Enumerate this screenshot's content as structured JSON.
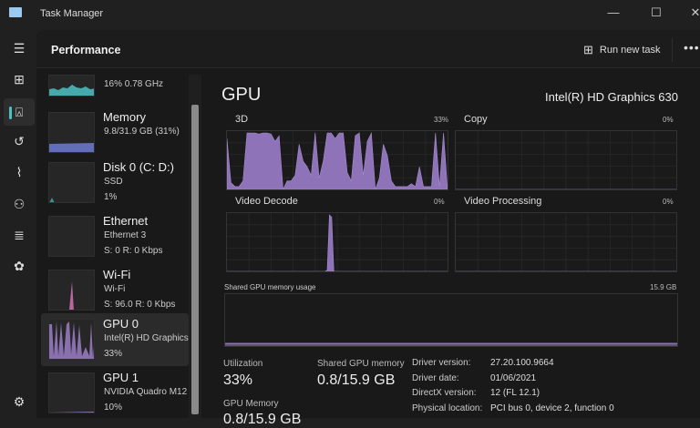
{
  "window": {
    "title": "Task Manager",
    "controls": [
      "minimize",
      "maximize",
      "close"
    ]
  },
  "nav": {
    "items": [
      "menu-icon",
      "processes-icon",
      "performance-icon",
      "app-history-icon",
      "startup-icon",
      "users-icon",
      "details-icon",
      "services-icon",
      "settings-icon"
    ],
    "active": "performance-icon"
  },
  "header": {
    "title": "Performance",
    "run_new_task": "Run new task",
    "more": "•••"
  },
  "sidebar": {
    "items": [
      {
        "title": "",
        "sub1": "16%  0.78 GHz",
        "color": "#4cc2c4"
      },
      {
        "title": "Memory",
        "sub1": "9.8/31.9 GB (31%)",
        "color": "#6e7bd6"
      },
      {
        "title": "Disk 0 (C: D:)",
        "sub1": "SSD",
        "sub2": "1%",
        "color": "#3fa6a6"
      },
      {
        "title": "Ethernet",
        "sub1": "Ethernet 3",
        "sub2": "S: 0 R: 0 Kbps",
        "color": "#c86fa6"
      },
      {
        "title": "Wi-Fi",
        "sub1": "Wi-Fi",
        "sub2": "S: 96.0 R: 0 Kbps",
        "color": "#d173b0"
      },
      {
        "title": "GPU 0",
        "sub1": "Intel(R) HD Graphics",
        "sub2": "33%",
        "color": "#9c7ec8",
        "selected": true
      },
      {
        "title": "GPU 1",
        "sub1": "NVIDIA Quadro M12",
        "sub2": "10%",
        "color": "#9c7ec8"
      }
    ]
  },
  "main": {
    "title": "GPU",
    "device": "Intel(R) HD Graphics 630",
    "accent": "#8f73b8",
    "graphs": [
      {
        "label": "3D",
        "percent": "33%",
        "values": [
          90,
          12,
          5,
          5,
          15,
          100,
          100,
          100,
          98,
          100,
          100,
          98,
          85,
          95,
          0,
          15,
          15,
          25,
          80,
          50,
          40,
          25,
          100,
          20,
          50,
          100,
          100,
          90,
          100,
          100,
          30,
          15,
          95,
          100,
          25,
          85,
          100,
          0,
          20,
          80,
          60,
          15,
          5,
          5,
          5,
          5,
          10,
          5,
          40,
          5,
          5,
          5,
          100,
          5,
          100,
          0
        ]
      },
      {
        "label": "Copy",
        "percent": "0%",
        "values": [
          0,
          0
        ]
      },
      {
        "label": "Video Decode",
        "percent": "0%",
        "values": [
          0,
          0,
          0,
          0,
          0,
          0,
          0,
          0,
          0,
          0,
          0,
          0,
          0,
          0,
          0,
          0,
          0,
          0,
          0,
          0,
          0,
          0,
          0,
          0,
          0,
          0,
          0,
          0,
          0,
          0,
          0,
          0,
          0,
          0,
          0,
          0,
          0,
          0,
          0,
          0,
          0,
          0,
          0,
          0,
          0,
          2,
          100,
          96,
          0,
          0,
          0,
          0,
          0,
          0,
          0,
          0,
          0,
          0,
          0,
          0,
          0,
          0,
          0,
          0,
          0,
          0,
          0,
          0,
          0,
          0,
          0,
          0,
          0,
          0,
          0,
          0,
          0,
          0,
          0,
          0,
          0,
          0,
          0,
          0,
          0,
          0,
          0,
          0,
          0,
          0,
          0,
          0,
          0,
          0,
          0,
          0,
          0,
          0,
          0,
          0
        ]
      },
      {
        "label": "Video Processing",
        "percent": "0%",
        "values": [
          0,
          0
        ]
      }
    ],
    "shared_memory": {
      "label": "Shared GPU memory usage",
      "max": "15.9 GB",
      "level_percent": 5
    },
    "stats": {
      "utilization_label": "Utilization",
      "utilization": "33%",
      "shared_label": "Shared GPU memory",
      "shared": "0.8/15.9 GB",
      "gpu_memory_label": "GPU Memory",
      "gpu_memory": "0.8/15.9 GB"
    },
    "details": [
      {
        "k": "Driver version:",
        "v": "27.20.100.9664"
      },
      {
        "k": "Driver date:",
        "v": "01/06/2021"
      },
      {
        "k": "DirectX version:",
        "v": "12 (FL 12.1)"
      },
      {
        "k": "Physical location:",
        "v": "PCI bus 0, device 2, function 0"
      }
    ]
  }
}
